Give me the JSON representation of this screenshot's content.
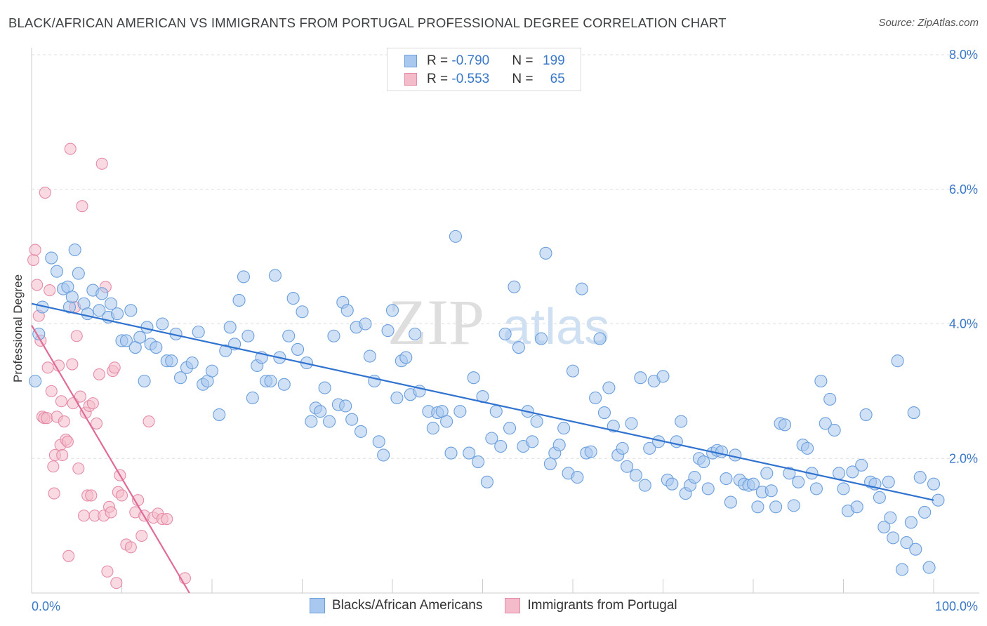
{
  "title": "BLACK/AFRICAN AMERICAN VS IMMIGRANTS FROM PORTUGAL PROFESSIONAL DEGREE CORRELATION CHART",
  "source": "Source: ZipAtlas.com",
  "watermark": {
    "zip": "ZIP",
    "atlas": "atlas"
  },
  "colors": {
    "blue_fill": "#a9c8ef",
    "blue_stroke": "#6b9fdc",
    "blue_line": "#2f72cf",
    "pink_fill": "#f4bccb",
    "pink_stroke": "#e58ca8",
    "pink_line": "#e06b96",
    "axis_label": "#3a78c8",
    "grid": "#dddddd"
  },
  "legend": {
    "rows": [
      {
        "r_label": "R = ",
        "r_value": "-0.790",
        "n_label": "N = ",
        "n_value": "199"
      },
      {
        "r_label": "R = ",
        "r_value": "-0.553",
        "n_label": "N = ",
        "n_value": "65"
      }
    ]
  },
  "chart_data": {
    "type": "scatter",
    "title": "BLACK/AFRICAN AMERICAN VS IMMIGRANTS FROM PORTUGAL PROFESSIONAL DEGREE CORRELATION CHART",
    "xlabel": "",
    "ylabel": "Professional Degree",
    "xlim": [
      0,
      100
    ],
    "ylim": [
      0,
      8
    ],
    "x_tick_labels": [
      "0.0%",
      "100.0%"
    ],
    "y_ticks": [
      2,
      4,
      6,
      8
    ],
    "y_tick_labels": [
      "2.0%",
      "4.0%",
      "6.0%",
      "8.0%"
    ],
    "grid": true,
    "legend_position": "bottom",
    "series": [
      {
        "name": "Blacks/African Americans",
        "color": "#6b9fdc",
        "trend": {
          "x": [
            0,
            100
          ],
          "y": [
            4.3,
            1.38
          ]
        },
        "points": [
          [
            0.4,
            3.15
          ],
          [
            0.8,
            3.85
          ],
          [
            1.2,
            4.25
          ],
          [
            2.2,
            4.98
          ],
          [
            2.8,
            4.78
          ],
          [
            3.5,
            4.52
          ],
          [
            4.0,
            4.55
          ],
          [
            4.2,
            4.25
          ],
          [
            4.5,
            4.4
          ],
          [
            4.8,
            5.1
          ],
          [
            5.2,
            4.75
          ],
          [
            5.8,
            4.3
          ],
          [
            6.2,
            4.15
          ],
          [
            6.8,
            4.5
          ],
          [
            7.5,
            4.2
          ],
          [
            7.8,
            4.45
          ],
          [
            8.5,
            4.1
          ],
          [
            8.8,
            4.3
          ],
          [
            9.5,
            4.15
          ],
          [
            10.0,
            3.75
          ],
          [
            10.5,
            3.75
          ],
          [
            11.0,
            4.2
          ],
          [
            11.5,
            3.65
          ],
          [
            12.0,
            3.8
          ],
          [
            12.5,
            3.15
          ],
          [
            12.8,
            3.95
          ],
          [
            13.2,
            3.7
          ],
          [
            13.8,
            3.65
          ],
          [
            14.5,
            4.0
          ],
          [
            15.0,
            3.45
          ],
          [
            15.5,
            3.45
          ],
          [
            16.0,
            3.85
          ],
          [
            16.5,
            3.2
          ],
          [
            17.2,
            3.35
          ],
          [
            17.8,
            3.42
          ],
          [
            18.5,
            3.88
          ],
          [
            19.0,
            3.1
          ],
          [
            19.5,
            3.15
          ],
          [
            20.0,
            3.3
          ],
          [
            20.8,
            2.65
          ],
          [
            21.5,
            3.6
          ],
          [
            22.0,
            3.95
          ],
          [
            22.5,
            3.7
          ],
          [
            23.0,
            4.35
          ],
          [
            23.5,
            4.7
          ],
          [
            24.0,
            3.82
          ],
          [
            24.5,
            2.9
          ],
          [
            25.0,
            3.38
          ],
          [
            25.5,
            3.5
          ],
          [
            26.0,
            3.15
          ],
          [
            26.5,
            3.15
          ],
          [
            27.0,
            4.72
          ],
          [
            27.5,
            3.5
          ],
          [
            28.0,
            3.1
          ],
          [
            28.5,
            3.82
          ],
          [
            29.0,
            4.38
          ],
          [
            29.5,
            3.62
          ],
          [
            30.0,
            4.18
          ],
          [
            30.5,
            3.42
          ],
          [
            31.0,
            2.55
          ],
          [
            31.5,
            2.75
          ],
          [
            32.0,
            2.7
          ],
          [
            32.5,
            3.05
          ],
          [
            33.0,
            2.55
          ],
          [
            33.5,
            3.82
          ],
          [
            34.0,
            2.8
          ],
          [
            34.5,
            4.32
          ],
          [
            34.8,
            2.78
          ],
          [
            35.0,
            4.2
          ],
          [
            35.5,
            2.58
          ],
          [
            36.0,
            3.95
          ],
          [
            36.5,
            2.4
          ],
          [
            37.0,
            4.0
          ],
          [
            37.5,
            3.52
          ],
          [
            38.0,
            3.15
          ],
          [
            38.5,
            2.25
          ],
          [
            39.0,
            2.05
          ],
          [
            39.5,
            3.9
          ],
          [
            40.0,
            4.2
          ],
          [
            40.5,
            2.9
          ],
          [
            41.0,
            3.45
          ],
          [
            41.5,
            3.5
          ],
          [
            42.0,
            2.95
          ],
          [
            42.5,
            3.85
          ],
          [
            43.0,
            3.0
          ],
          [
            44.0,
            2.7
          ],
          [
            44.5,
            2.45
          ],
          [
            45.0,
            2.68
          ],
          [
            45.5,
            2.7
          ],
          [
            46.0,
            2.55
          ],
          [
            46.5,
            2.08
          ],
          [
            47.0,
            5.3
          ],
          [
            47.5,
            2.7
          ],
          [
            48.5,
            2.08
          ],
          [
            49.0,
            3.2
          ],
          [
            49.5,
            1.95
          ],
          [
            50.0,
            2.92
          ],
          [
            50.5,
            1.65
          ],
          [
            51.0,
            2.3
          ],
          [
            51.5,
            2.7
          ],
          [
            52.0,
            2.18
          ],
          [
            52.5,
            3.85
          ],
          [
            53.0,
            2.45
          ],
          [
            53.5,
            4.55
          ],
          [
            54.0,
            3.65
          ],
          [
            54.5,
            2.18
          ],
          [
            55.0,
            2.7
          ],
          [
            55.5,
            2.25
          ],
          [
            56.0,
            2.55
          ],
          [
            56.5,
            3.78
          ],
          [
            57.0,
            5.05
          ],
          [
            57.5,
            1.92
          ],
          [
            58.0,
            2.08
          ],
          [
            58.5,
            2.2
          ],
          [
            59.0,
            2.45
          ],
          [
            59.5,
            1.78
          ],
          [
            60.0,
            3.3
          ],
          [
            60.5,
            1.72
          ],
          [
            61.0,
            4.52
          ],
          [
            61.5,
            2.08
          ],
          [
            62.0,
            2.1
          ],
          [
            62.5,
            2.9
          ],
          [
            63.0,
            3.78
          ],
          [
            63.5,
            2.68
          ],
          [
            64.0,
            3.05
          ],
          [
            64.5,
            2.48
          ],
          [
            65.0,
            2.05
          ],
          [
            65.5,
            2.15
          ],
          [
            66.0,
            1.88
          ],
          [
            66.5,
            2.52
          ],
          [
            67.0,
            1.75
          ],
          [
            67.5,
            3.2
          ],
          [
            68.0,
            1.6
          ],
          [
            68.5,
            2.15
          ],
          [
            69.0,
            3.15
          ],
          [
            69.5,
            2.25
          ],
          [
            70.0,
            3.22
          ],
          [
            70.5,
            1.68
          ],
          [
            71.0,
            1.62
          ],
          [
            71.5,
            2.25
          ],
          [
            72.0,
            2.55
          ],
          [
            72.5,
            1.48
          ],
          [
            73.0,
            1.6
          ],
          [
            73.5,
            1.72
          ],
          [
            74.0,
            2.0
          ],
          [
            74.5,
            1.95
          ],
          [
            75.0,
            1.55
          ],
          [
            75.5,
            2.08
          ],
          [
            76.0,
            2.12
          ],
          [
            76.5,
            2.1
          ],
          [
            77.0,
            1.7
          ],
          [
            77.5,
            1.35
          ],
          [
            78.0,
            2.05
          ],
          [
            78.5,
            1.68
          ],
          [
            79.0,
            1.62
          ],
          [
            79.5,
            1.6
          ],
          [
            80.0,
            1.62
          ],
          [
            80.5,
            1.28
          ],
          [
            81.0,
            1.5
          ],
          [
            81.5,
            1.78
          ],
          [
            82.0,
            1.52
          ],
          [
            82.5,
            1.28
          ],
          [
            83.0,
            2.52
          ],
          [
            83.5,
            2.5
          ],
          [
            84.0,
            1.78
          ],
          [
            84.5,
            1.3
          ],
          [
            85.0,
            1.65
          ],
          [
            85.5,
            2.2
          ],
          [
            86.0,
            2.15
          ],
          [
            86.5,
            1.78
          ],
          [
            87.0,
            1.55
          ],
          [
            87.5,
            3.15
          ],
          [
            88.0,
            2.52
          ],
          [
            88.5,
            2.88
          ],
          [
            89.0,
            2.42
          ],
          [
            89.5,
            1.78
          ],
          [
            90.0,
            1.55
          ],
          [
            90.5,
            1.22
          ],
          [
            91.0,
            1.8
          ],
          [
            91.5,
            1.28
          ],
          [
            92.0,
            1.9
          ],
          [
            92.5,
            2.65
          ],
          [
            93.0,
            1.65
          ],
          [
            93.5,
            1.62
          ],
          [
            94.0,
            1.42
          ],
          [
            94.5,
            0.98
          ],
          [
            95.0,
            1.65
          ],
          [
            95.5,
            0.82
          ],
          [
            96.0,
            3.45
          ],
          [
            96.5,
            0.35
          ],
          [
            97.0,
            0.75
          ],
          [
            97.5,
            1.05
          ],
          [
            98.0,
            0.65
          ],
          [
            98.5,
            1.72
          ],
          [
            99.0,
            1.2
          ],
          [
            99.5,
            0.38
          ],
          [
            100.0,
            1.62
          ],
          [
            100.5,
            1.38
          ],
          [
            97.8,
            2.68
          ],
          [
            95.2,
            1.12
          ]
        ]
      },
      {
        "name": "Immigrants from Portugal",
        "color": "#e58ca8",
        "trend": {
          "x": [
            0,
            17.5
          ],
          "y": [
            3.98,
            0.0
          ]
        },
        "points": [
          [
            0.2,
            4.95
          ],
          [
            0.4,
            5.1
          ],
          [
            0.6,
            4.58
          ],
          [
            0.8,
            4.12
          ],
          [
            1.0,
            3.75
          ],
          [
            1.2,
            2.62
          ],
          [
            1.4,
            2.6
          ],
          [
            1.5,
            5.95
          ],
          [
            1.7,
            2.6
          ],
          [
            1.8,
            3.35
          ],
          [
            2.0,
            4.5
          ],
          [
            2.2,
            3.0
          ],
          [
            2.4,
            1.88
          ],
          [
            2.5,
            1.48
          ],
          [
            2.6,
            2.05
          ],
          [
            2.8,
            2.62
          ],
          [
            3.0,
            3.38
          ],
          [
            3.2,
            2.2
          ],
          [
            3.3,
            2.85
          ],
          [
            3.4,
            2.05
          ],
          [
            3.6,
            2.55
          ],
          [
            3.8,
            2.28
          ],
          [
            4.0,
            2.25
          ],
          [
            4.1,
            0.55
          ],
          [
            4.3,
            6.6
          ],
          [
            4.5,
            3.4
          ],
          [
            4.6,
            2.82
          ],
          [
            4.8,
            4.25
          ],
          [
            5.0,
            3.82
          ],
          [
            5.2,
            1.85
          ],
          [
            5.4,
            2.92
          ],
          [
            5.6,
            5.75
          ],
          [
            5.8,
            1.15
          ],
          [
            6.0,
            2.68
          ],
          [
            6.2,
            1.45
          ],
          [
            6.4,
            2.78
          ],
          [
            6.6,
            1.45
          ],
          [
            6.8,
            2.82
          ],
          [
            7.0,
            1.15
          ],
          [
            7.2,
            2.52
          ],
          [
            7.5,
            3.25
          ],
          [
            7.8,
            6.38
          ],
          [
            8.0,
            1.15
          ],
          [
            8.2,
            4.55
          ],
          [
            8.4,
            0.32
          ],
          [
            8.6,
            1.28
          ],
          [
            8.8,
            1.2
          ],
          [
            9.0,
            3.3
          ],
          [
            9.2,
            3.35
          ],
          [
            9.4,
            0.15
          ],
          [
            9.6,
            1.5
          ],
          [
            9.8,
            1.75
          ],
          [
            10.0,
            1.45
          ],
          [
            10.5,
            0.72
          ],
          [
            11.0,
            0.68
          ],
          [
            11.5,
            1.2
          ],
          [
            11.8,
            1.38
          ],
          [
            12.2,
            0.85
          ],
          [
            12.5,
            1.15
          ],
          [
            13.0,
            2.55
          ],
          [
            13.5,
            1.12
          ],
          [
            14.0,
            1.18
          ],
          [
            14.5,
            1.1
          ],
          [
            15.0,
            1.1
          ],
          [
            17.0,
            0.22
          ]
        ]
      }
    ]
  },
  "bottom_legend": [
    {
      "label": "Blacks/African Americans"
    },
    {
      "label": "Immigrants from Portugal"
    }
  ]
}
